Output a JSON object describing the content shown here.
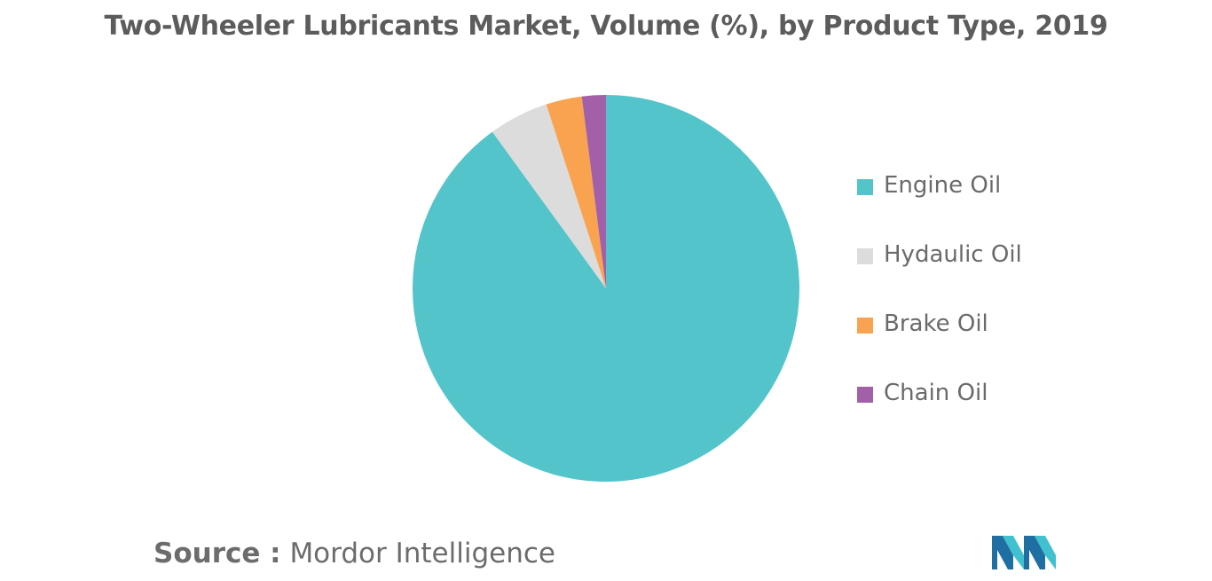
{
  "chart_data": {
    "type": "pie",
    "title": "Two-Wheeler Lubricants Market, Volume (%), by Product Type, 2019",
    "categories": [
      "Engine Oil",
      "Hydaulic Oil",
      "Brake Oil",
      "Chain Oil"
    ],
    "values": [
      90,
      5,
      3,
      2
    ],
    "colors": [
      "#52c4ca",
      "#dcdcdc",
      "#f9a350",
      "#a160a8"
    ],
    "start_angle": "12 o'clock",
    "direction": "clockwise",
    "legend_position": "right"
  },
  "source": {
    "prefix": "Source :",
    "name": "Mordor Intelligence"
  },
  "logo": {
    "icon": "mordor-intelligence-logo",
    "colors": [
      "#1f6fa3",
      "#41c0cf"
    ]
  }
}
